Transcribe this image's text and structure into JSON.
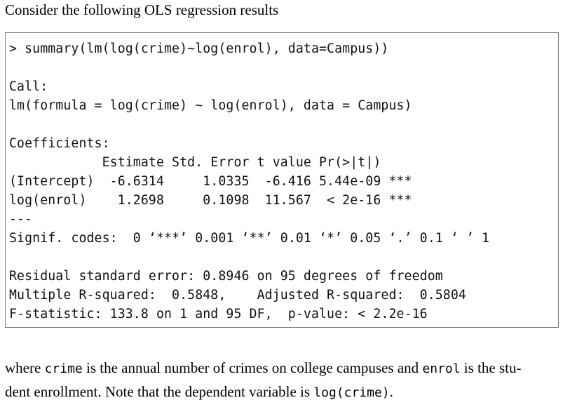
{
  "intro_text": "Consider the following OLS regression results",
  "console_lines": [
    "> summary(lm(log(crime)~log(enrol), data=Campus))",
    "",
    "Call:",
    "lm(formula = log(crime) ~ log(enrol), data = Campus)",
    "",
    "Coefficients:",
    "            Estimate Std. Error t value Pr(>|t|)",
    "(Intercept)  -6.6314     1.0335  -6.416 5.44e-09 ***",
    "log(enrol)    1.2698     0.1098  11.567  < 2e-16 ***",
    "---",
    "Signif. codes:  0 ‘***’ 0.001 ‘**’ 0.01 ‘*’ 0.05 ‘.’ 0.1 ‘ ’ 1",
    "",
    "Residual standard error: 0.8946 on 95 degrees of freedom",
    "Multiple R-squared:  0.5848,    Adjusted R-squared:  0.5804",
    "F-statistic: 133.8 on 1 and 95 DF,  p-value: < 2.2e-16"
  ],
  "outro": {
    "line1_a": "where ",
    "line1_code1": "crime",
    "line1_b": " is the annual number of crimes on college campuses and ",
    "line1_code2": "enrol",
    "line1_c": " is the stu-",
    "line2_a": "dent enrollment. Note that the dependent variable is ",
    "line2_code": "log(crime)",
    "line2_b": "."
  }
}
